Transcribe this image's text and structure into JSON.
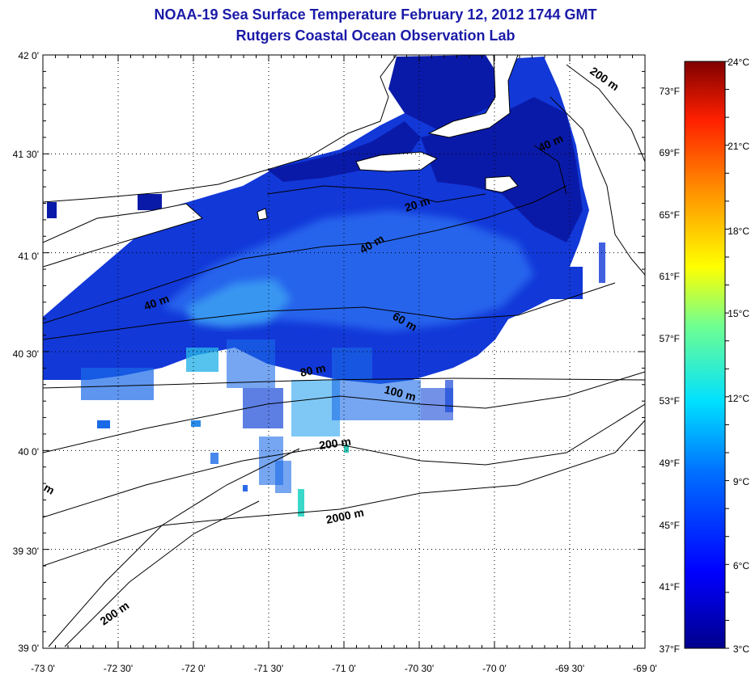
{
  "title": "NOAA-19 Sea Surface Temperature February 12, 2012 1744 GMT",
  "subtitle": "Rutgers Coastal Ocean Observation Lab",
  "lat_labels": [
    "42 0'",
    "41 30'",
    "41 0'",
    "40 30'",
    "40 0'",
    "39 30'",
    "39 0'"
  ],
  "lon_labels": [
    "-73 0'",
    "-72 30'",
    "-72 0'",
    "-71 30'",
    "-71 0'",
    "-70 30'",
    "-70 0'",
    "-69 30'",
    "-69 0'"
  ],
  "fahrenheit_labels": [
    "73°F",
    "69°F",
    "65°F",
    "61°F",
    "57°F",
    "53°F",
    "49°F",
    "45°F",
    "41°F",
    "37°F"
  ],
  "celsius_labels": [
    "24°C",
    "21°C",
    "18°C",
    "15°C",
    "12°C",
    "9°C",
    "6°C",
    "3°C"
  ],
  "contour_labels": [
    "200 m",
    "40 m",
    "20 m",
    "40 m",
    "40 m",
    "60 m",
    "80 m",
    "100 m",
    "200 m",
    "2000 m",
    "200 m",
    "m"
  ],
  "colors": {
    "title": "#1a1aa8",
    "sst_cold": "#0a1a9c",
    "sst_mid": "#1c5ce8",
    "sst_warm": "#1ab8e8"
  },
  "colorbar": {
    "min_c": 3,
    "max_c": 24
  }
}
